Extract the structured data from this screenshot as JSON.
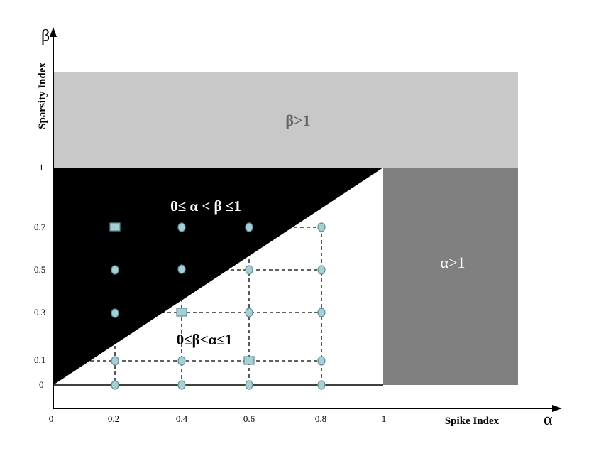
{
  "axes": {
    "y_symbol": "β",
    "y_label": "Sparsity Index",
    "x_symbol": "α",
    "x_label": "Spike Index",
    "y_ticks": [
      "1",
      "0.7",
      "0.5",
      "0.3",
      "0.1",
      "0"
    ],
    "x_ticks": [
      "0",
      "0.2",
      "0.4",
      "0.6",
      "0.8",
      "1"
    ]
  },
  "regions": [
    {
      "label": "β>1"
    },
    {
      "label": "α>1"
    },
    {
      "label": "0≤ α < β ≤1"
    },
    {
      "label": "0≤β<α≤1"
    }
  ]
}
